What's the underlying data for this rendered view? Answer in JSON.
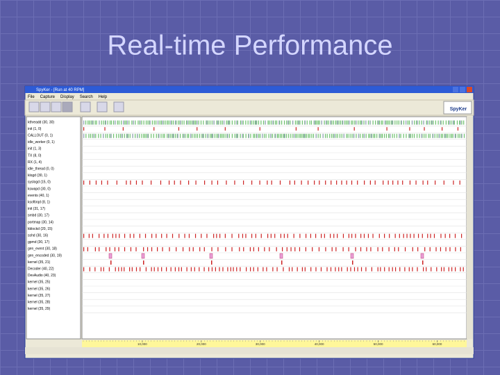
{
  "slide_title": "Real-time Performance",
  "window": {
    "title": "SpyKer - [Run at 40 RPM]",
    "menu": [
      "File",
      "Capture",
      "Display",
      "Search",
      "Help"
    ],
    "logo": "SpyKer",
    "tracks": [
      "kthreadd (30, 30)",
      "init (1, 0)",
      "CALLOUT (0, 1)",
      "idle_worker (0, 1)",
      "init (1, 3)",
      "TX (8, 0)",
      "RX (1, 4)",
      "idle_thread (0, 0)",
      "klogd (30, 1)",
      "syslogd (15, 0)",
      "kswapd (30, 0)",
      "events (40, 1)",
      "ksoftirqd (8, 1)",
      "init (31, 17)",
      "smbd (30, 17)",
      "portmap (30, 14)",
      "kblockd (20, 15)",
      "sshd (30, 16)",
      "gpmd (30, 17)",
      "gen_event (30, 18)",
      "gen_encoded (30, 19)",
      "kernel (35, 21)",
      "Decoder (40, 22)",
      "DevAudio (40, 23)",
      "kernel (35, 25)",
      "kernel (35, 26)",
      "kernel (35, 27)",
      "kernel (35, 28)",
      "kernel (35, 29)"
    ],
    "timeline": {
      "xlim": [
        0,
        65000
      ],
      "xticks": [
        {
          "value": 10000,
          "label": "10,000"
        },
        {
          "value": 20000,
          "label": "20,000"
        },
        {
          "value": 30000,
          "label": "30,000"
        },
        {
          "value": 40000,
          "label": "40,000"
        },
        {
          "value": 50000,
          "label": "50,000"
        },
        {
          "value": 60000,
          "label": "60,000"
        }
      ]
    }
  }
}
